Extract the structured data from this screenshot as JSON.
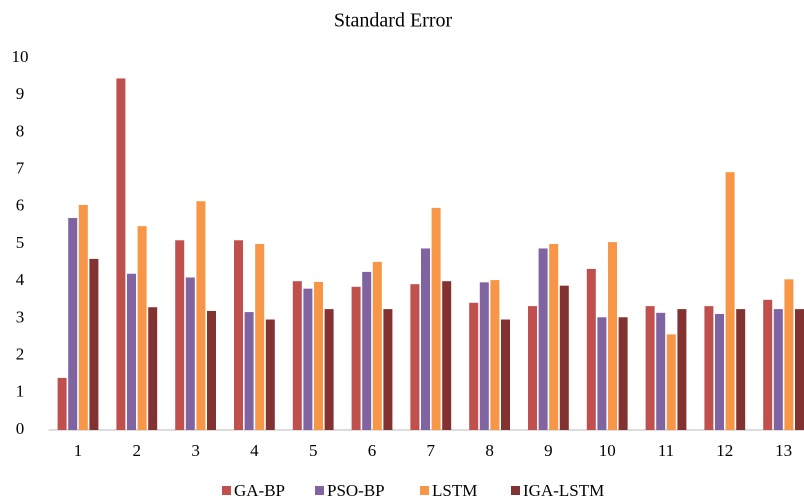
{
  "chart_data": {
    "type": "bar",
    "title": "Standard Error",
    "categories": [
      "1",
      "2",
      "3",
      "4",
      "5",
      "6",
      "7",
      "8",
      "9",
      "10",
      "11",
      "12",
      "13"
    ],
    "series": [
      {
        "name": "GA-BP",
        "color": "#c0504d",
        "values": [
          1.4,
          9.45,
          5.1,
          5.1,
          4.0,
          3.85,
          3.92,
          3.42,
          3.33,
          4.33,
          3.33,
          3.33,
          3.5
        ]
      },
      {
        "name": "PSO-BP",
        "color": "#8064a2",
        "values": [
          5.7,
          4.2,
          4.1,
          3.17,
          3.8,
          4.25,
          4.88,
          3.97,
          4.88,
          3.03,
          3.15,
          3.12,
          3.25
        ]
      },
      {
        "name": "LSTM",
        "color": "#f79646",
        "values": [
          6.05,
          5.48,
          6.15,
          5.0,
          3.98,
          4.52,
          5.97,
          4.03,
          5.0,
          5.05,
          2.57,
          6.93,
          4.05
        ]
      },
      {
        "name": "IGA-LSTM",
        "color": "#833232",
        "values": [
          4.6,
          3.3,
          3.2,
          2.97,
          3.25,
          3.25,
          4.0,
          2.97,
          3.88,
          3.03,
          3.25,
          3.25,
          3.25
        ]
      }
    ],
    "ylim": [
      0,
      10
    ],
    "yticks": [
      0,
      1,
      2,
      3,
      4,
      5,
      6,
      7,
      8,
      9,
      10
    ],
    "grid": false,
    "legend": "bottom"
  }
}
